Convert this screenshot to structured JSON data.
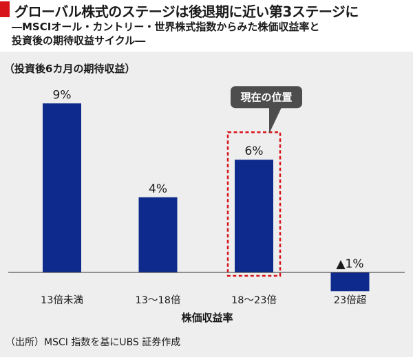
{
  "title": "グローバル株式のステージは後退期に近い第3ステージに",
  "subtitle_line1": "―MSCIオール・カントリー・世界株式指数からみた株価収益率と",
  "subtitle_line2": "投資後の期待収益サイクル―",
  "source": "（出所）MSCI 指数を基にUBS 証券作成",
  "colors": {
    "accent": "#d7141a",
    "bar": "#0e2a8c",
    "panel": "#eeeeee",
    "callout": "#4d4d4d"
  },
  "chart_data": {
    "type": "bar",
    "ylabel": "（投資後6カ月の期待収益）",
    "xlabel": "株価収益率",
    "categories": [
      "13倍未満",
      "13～18倍",
      "18～23倍",
      "23倍超"
    ],
    "values": [
      9,
      4,
      6,
      -1
    ],
    "value_labels": [
      "9%",
      "4%",
      "6%",
      "▲1%"
    ],
    "unit": "%",
    "highlight_index": 2,
    "highlight_label": "現在の位置",
    "grid": false,
    "ylim": [
      -1.2,
      9.5
    ]
  }
}
